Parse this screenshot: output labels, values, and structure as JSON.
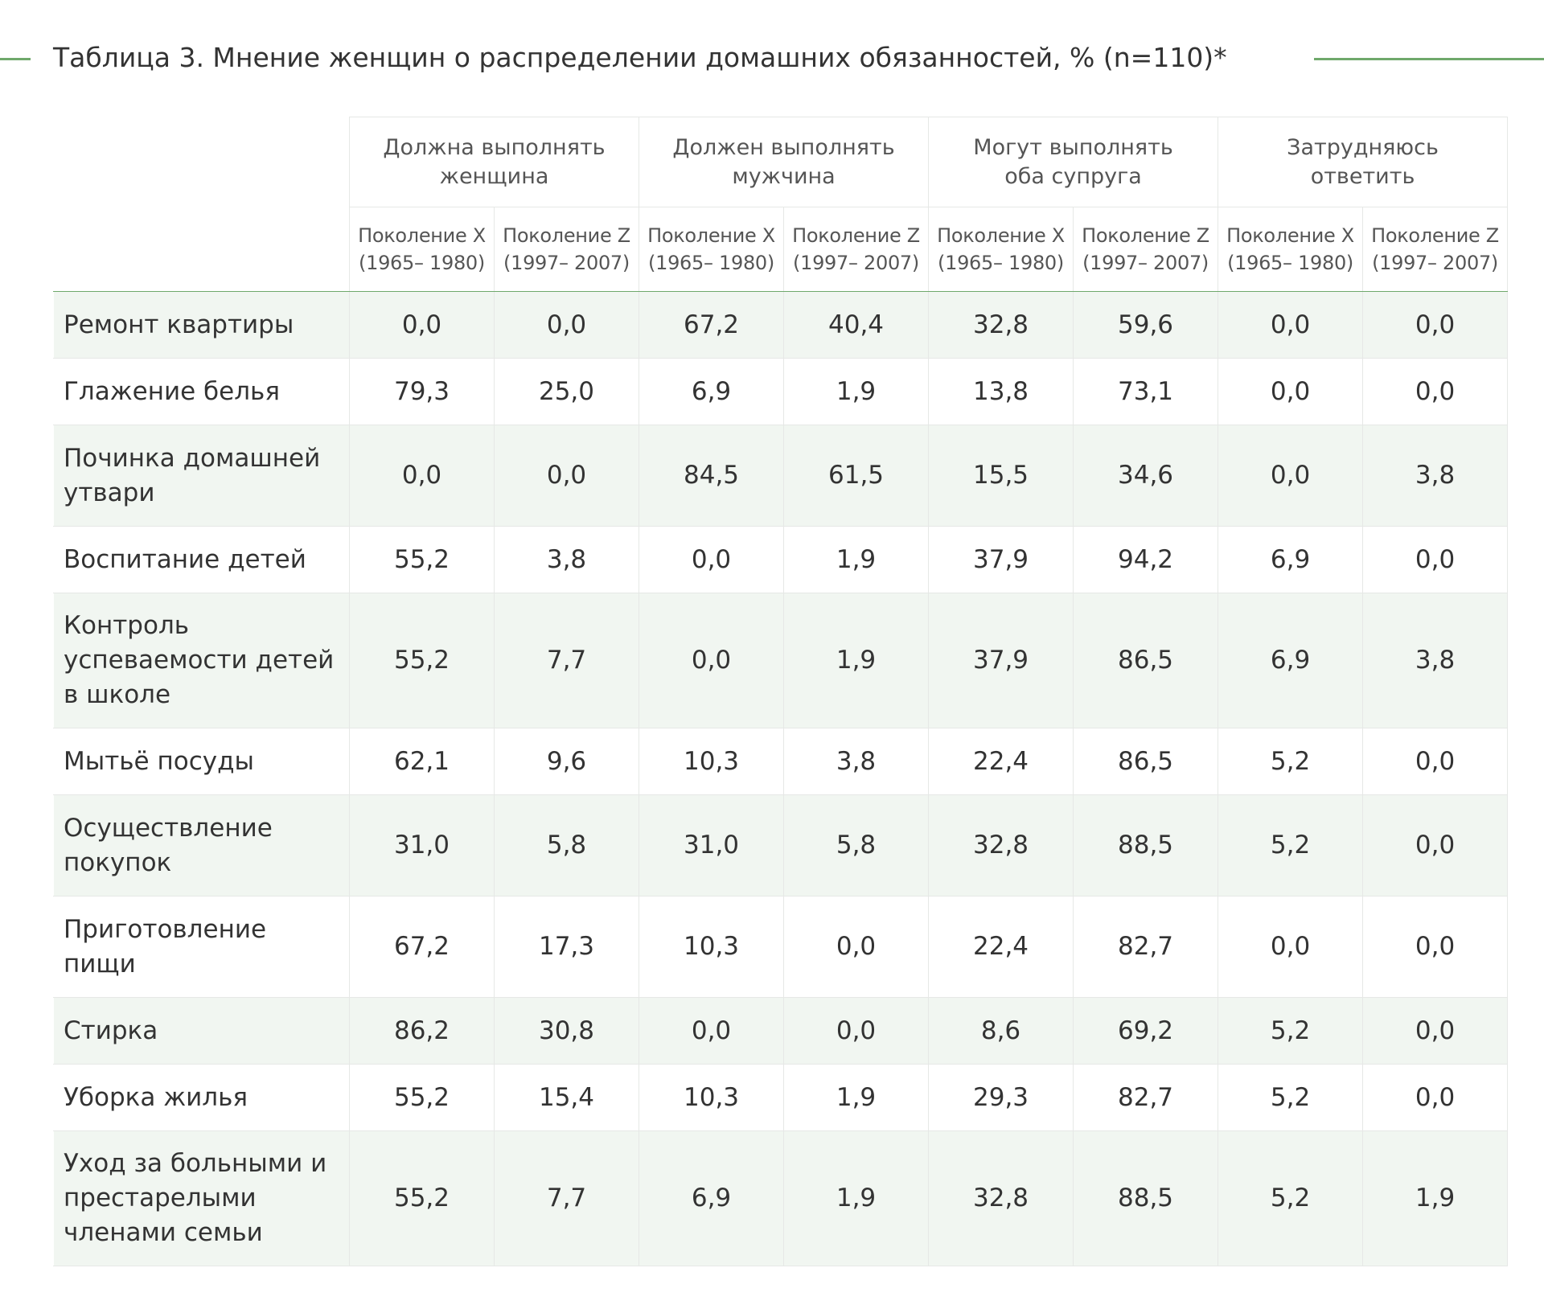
{
  "title": "Таблица 3. Мнение женщин о распределении домашних обязанностей, % (n=110)*",
  "groups": [
    {
      "line1": "Должна выполнять",
      "line2": "женщина"
    },
    {
      "line1": "Должен выполнять",
      "line2": "мужчина"
    },
    {
      "line1": "Могут выполнять",
      "line2": "оба супруга"
    },
    {
      "line1": "Затрудняюсь",
      "line2": "ответить"
    }
  ],
  "subheaders": {
    "genx": {
      "name": "Поколение X",
      "years": "(1965– 1980)"
    },
    "genz": {
      "name": "Поколение Z",
      "years": "(1997– 2007)"
    }
  },
  "rows": [
    {
      "label": "Ремонт квартиры",
      "values": [
        "0,0",
        "0,0",
        "67,2",
        "40,4",
        "32,8",
        "59,6",
        "0,0",
        "0,0"
      ]
    },
    {
      "label": "Глажение белья",
      "values": [
        "79,3",
        "25,0",
        "6,9",
        "1,9",
        "13,8",
        "73,1",
        "0,0",
        "0,0"
      ]
    },
    {
      "label": "Починка домашней утвари",
      "values": [
        "0,0",
        "0,0",
        "84,5",
        "61,5",
        "15,5",
        "34,6",
        "0,0",
        "3,8"
      ]
    },
    {
      "label": "Воспитание детей",
      "values": [
        "55,2",
        "3,8",
        "0,0",
        "1,9",
        "37,9",
        "94,2",
        "6,9",
        "0,0"
      ]
    },
    {
      "label": "Контроль успеваемости детей в школе",
      "values": [
        "55,2",
        "7,7",
        "0,0",
        "1,9",
        "37,9",
        "86,5",
        "6,9",
        "3,8"
      ]
    },
    {
      "label": "Мытьё посуды",
      "values": [
        "62,1",
        "9,6",
        "10,3",
        "3,8",
        "22,4",
        "86,5",
        "5,2",
        "0,0"
      ]
    },
    {
      "label": "Осуществление покупок",
      "values": [
        "31,0",
        "5,8",
        "31,0",
        "5,8",
        "32,8",
        "88,5",
        "5,2",
        "0,0"
      ]
    },
    {
      "label": "Приготовление пищи",
      "values": [
        "67,2",
        "17,3",
        "10,3",
        "0,0",
        "22,4",
        "82,7",
        "0,0",
        "0,0"
      ]
    },
    {
      "label": "Стирка",
      "values": [
        "86,2",
        "30,8",
        "0,0",
        "0,0",
        "8,6",
        "69,2",
        "5,2",
        "0,0"
      ]
    },
    {
      "label": "Уборка жилья",
      "values": [
        "55,2",
        "15,4",
        "10,3",
        "1,9",
        "29,3",
        "82,7",
        "5,2",
        "0,0"
      ]
    },
    {
      "label": "Уход за больными и престарелыми членами семьи",
      "values": [
        "55,2",
        "7,7",
        "6,9",
        "1,9",
        "32,8",
        "88,5",
        "5,2",
        "1,9"
      ]
    }
  ]
}
